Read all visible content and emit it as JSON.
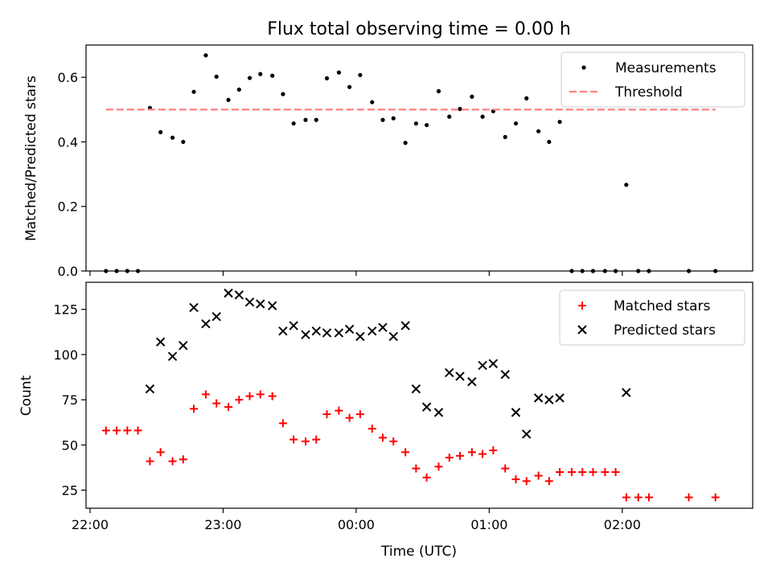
{
  "chart_data": [
    {
      "type": "scatter",
      "title": "Flux total observing time = 0.00 h",
      "xlabel": "",
      "ylabel": "Matched/Predicted stars",
      "xlim": [
        21.97,
        26.98
      ],
      "ylim": [
        0,
        0.7
      ],
      "yticks": [
        0.0,
        0.2,
        0.4,
        0.6
      ],
      "yticklabels": [
        "0.0",
        "0.2",
        "0.4",
        "0.6"
      ],
      "legend_position": "top-right",
      "series": [
        {
          "name": "Measurements",
          "marker": "dot",
          "color": "#000000",
          "points": [
            [
              22.12,
              0
            ],
            [
              22.2,
              0
            ],
            [
              22.28,
              0
            ],
            [
              22.36,
              0
            ],
            [
              22.45,
              0.505
            ],
            [
              22.53,
              0.43
            ],
            [
              22.62,
              0.413
            ],
            [
              22.7,
              0.4
            ],
            [
              22.78,
              0.555
            ],
            [
              22.87,
              0.668
            ],
            [
              22.95,
              0.602
            ],
            [
              23.04,
              0.53
            ],
            [
              23.12,
              0.562
            ],
            [
              23.2,
              0.598
            ],
            [
              23.28,
              0.61
            ],
            [
              23.37,
              0.605
            ],
            [
              23.45,
              0.548
            ],
            [
              23.53,
              0.457
            ],
            [
              23.62,
              0.468
            ],
            [
              23.7,
              0.468
            ],
            [
              23.78,
              0.597
            ],
            [
              23.87,
              0.615
            ],
            [
              23.95,
              0.57
            ],
            [
              24.03,
              0.607
            ],
            [
              24.12,
              0.523
            ],
            [
              24.2,
              0.468
            ],
            [
              24.28,
              0.473
            ],
            [
              24.37,
              0.397
            ],
            [
              24.45,
              0.457
            ],
            [
              24.53,
              0.452
            ],
            [
              24.62,
              0.557
            ],
            [
              24.7,
              0.478
            ],
            [
              24.78,
              0.502
            ],
            [
              24.87,
              0.54
            ],
            [
              24.95,
              0.478
            ],
            [
              25.03,
              0.495
            ],
            [
              25.12,
              0.415
            ],
            [
              25.2,
              0.457
            ],
            [
              25.28,
              0.535
            ],
            [
              25.37,
              0.433
            ],
            [
              25.45,
              0.4
            ],
            [
              25.53,
              0.462
            ],
            [
              25.62,
              0
            ],
            [
              25.7,
              0
            ],
            [
              25.78,
              0
            ],
            [
              25.87,
              0
            ],
            [
              25.95,
              0
            ],
            [
              26.03,
              0.267
            ],
            [
              26.12,
              0
            ],
            [
              26.2,
              0
            ],
            [
              26.5,
              0
            ],
            [
              26.7,
              0
            ]
          ]
        },
        {
          "name": "Threshold",
          "line_style": "dashed",
          "color": "#ff8080",
          "points": [
            [
              22.12,
              0.5
            ],
            [
              26.7,
              0.5
            ]
          ]
        }
      ]
    },
    {
      "type": "scatter",
      "title": "",
      "xlabel": "Time (UTC)",
      "ylabel": "Count",
      "xlim": [
        21.97,
        26.98
      ],
      "ylim": [
        15,
        140
      ],
      "xticks": [
        22,
        23,
        24,
        25,
        26
      ],
      "xticklabels": [
        "22:00",
        "23:00",
        "00:00",
        "01:00",
        "02:00"
      ],
      "yticks": [
        25,
        50,
        75,
        100,
        125
      ],
      "yticklabels": [
        "25",
        "50",
        "75",
        "100",
        "125"
      ],
      "legend_position": "top-right",
      "series": [
        {
          "name": "Matched stars",
          "marker": "plus",
          "color": "#ff0000",
          "points": [
            [
              22.12,
              58
            ],
            [
              22.2,
              58
            ],
            [
              22.28,
              58
            ],
            [
              22.36,
              58
            ],
            [
              22.45,
              41
            ],
            [
              22.53,
              46
            ],
            [
              22.62,
              41
            ],
            [
              22.7,
              42
            ],
            [
              22.78,
              70
            ],
            [
              22.87,
              78
            ],
            [
              22.95,
              73
            ],
            [
              23.04,
              71
            ],
            [
              23.12,
              75
            ],
            [
              23.2,
              77
            ],
            [
              23.28,
              78
            ],
            [
              23.37,
              77
            ],
            [
              23.45,
              62
            ],
            [
              23.53,
              53
            ],
            [
              23.62,
              52
            ],
            [
              23.7,
              53
            ],
            [
              23.78,
              67
            ],
            [
              23.87,
              69
            ],
            [
              23.95,
              65
            ],
            [
              24.03,
              67
            ],
            [
              24.12,
              59
            ],
            [
              24.2,
              54
            ],
            [
              24.28,
              52
            ],
            [
              24.37,
              46
            ],
            [
              24.45,
              37
            ],
            [
              24.53,
              32
            ],
            [
              24.62,
              38
            ],
            [
              24.7,
              43
            ],
            [
              24.78,
              44
            ],
            [
              24.87,
              46
            ],
            [
              24.95,
              45
            ],
            [
              25.03,
              47
            ],
            [
              25.12,
              37
            ],
            [
              25.2,
              31
            ],
            [
              25.28,
              30
            ],
            [
              25.37,
              33
            ],
            [
              25.45,
              30
            ],
            [
              25.53,
              35
            ],
            [
              25.62,
              35
            ],
            [
              25.7,
              35
            ],
            [
              25.78,
              35
            ],
            [
              25.87,
              35
            ],
            [
              25.95,
              35
            ],
            [
              26.03,
              21
            ],
            [
              26.12,
              21
            ],
            [
              26.2,
              21
            ],
            [
              26.5,
              21
            ],
            [
              26.7,
              21
            ]
          ]
        },
        {
          "name": "Predicted stars",
          "marker": "x",
          "color": "#000000",
          "points": [
            [
              22.45,
              81
            ],
            [
              22.53,
              107
            ],
            [
              22.62,
              99
            ],
            [
              22.7,
              105
            ],
            [
              22.78,
              126
            ],
            [
              22.87,
              117
            ],
            [
              22.95,
              121
            ],
            [
              23.04,
              134
            ],
            [
              23.12,
              133
            ],
            [
              23.2,
              129
            ],
            [
              23.28,
              128
            ],
            [
              23.37,
              127
            ],
            [
              23.45,
              113
            ],
            [
              23.53,
              116
            ],
            [
              23.62,
              111
            ],
            [
              23.7,
              113
            ],
            [
              23.78,
              112
            ],
            [
              23.87,
              112
            ],
            [
              23.95,
              114
            ],
            [
              24.03,
              110
            ],
            [
              24.12,
              113
            ],
            [
              24.2,
              115
            ],
            [
              24.28,
              110
            ],
            [
              24.37,
              116
            ],
            [
              24.45,
              81
            ],
            [
              24.53,
              71
            ],
            [
              24.62,
              68
            ],
            [
              24.7,
              90
            ],
            [
              24.78,
              88
            ],
            [
              24.87,
              85
            ],
            [
              24.95,
              94
            ],
            [
              25.03,
              95
            ],
            [
              25.12,
              89
            ],
            [
              25.2,
              68
            ],
            [
              25.28,
              56
            ],
            [
              25.37,
              76
            ],
            [
              25.45,
              75
            ],
            [
              25.53,
              76
            ],
            [
              26.03,
              79
            ]
          ]
        }
      ]
    }
  ]
}
